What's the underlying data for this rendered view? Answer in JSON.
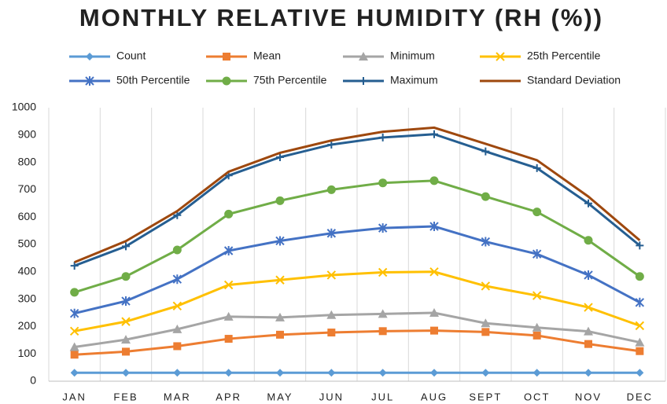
{
  "chart_data": {
    "type": "line",
    "stacked": true,
    "title": "MONTHLY RELATIVE HUMIDITY (RH (%))",
    "categories": [
      "JAN",
      "FEB",
      "MAR",
      "APR",
      "MAY",
      "JUN",
      "JUL",
      "AUG",
      "SEPT",
      "OCT",
      "NOV",
      "DEC"
    ],
    "series": [
      {
        "name": "Count",
        "color": "#5b9bd5",
        "marker": "diamond",
        "values": [
          31,
          31,
          31,
          31,
          31,
          31,
          31,
          31,
          31,
          31,
          31,
          31
        ]
      },
      {
        "name": "Mean",
        "color": "#ed7d31",
        "marker": "square",
        "values": [
          66,
          77,
          97,
          124,
          139,
          147,
          152,
          154,
          149,
          136,
          105,
          79
        ]
      },
      {
        "name": "Minimum",
        "color": "#a5a5a5",
        "marker": "triangle",
        "values": [
          28,
          44,
          62,
          81,
          63,
          64,
          63,
          65,
          32,
          29,
          46,
          32
        ]
      },
      {
        "name": "25th Percentile",
        "color": "#ffc000",
        "marker": "x",
        "values": [
          58,
          66,
          85,
          116,
          137,
          146,
          152,
          150,
          136,
          117,
          88,
          61
        ]
      },
      {
        "name": "50th Percentile",
        "color": "#4472c4",
        "marker": "star",
        "values": [
          65,
          75,
          98,
          125,
          143,
          153,
          162,
          166,
          162,
          152,
          118,
          85
        ]
      },
      {
        "name": "75th Percentile",
        "color": "#70ad47",
        "marker": "circle",
        "values": [
          77,
          90,
          107,
          134,
          147,
          159,
          165,
          167,
          165,
          154,
          127,
          95
        ]
      },
      {
        "name": "Maximum",
        "color": "#255e91",
        "marker": "plus",
        "values": [
          97,
          110,
          127,
          141,
          159,
          165,
          166,
          170,
          165,
          160,
          135,
          113
        ]
      },
      {
        "name": "Standard Deviation",
        "color": "#9e480e",
        "marker": "none",
        "values": [
          13,
          19,
          15,
          14,
          16,
          15,
          21,
          24,
          28,
          29,
          25,
          19
        ]
      }
    ],
    "ylim": [
      0,
      1000
    ],
    "yticks": [
      0,
      100,
      200,
      300,
      400,
      500,
      600,
      700,
      800,
      900,
      1000
    ],
    "grid": "vertical"
  }
}
